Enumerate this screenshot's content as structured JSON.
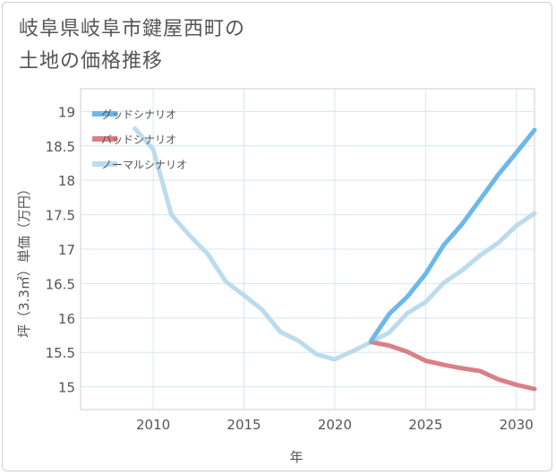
{
  "title": {
    "line1": "岐阜県岐阜市鍵屋西町の",
    "line2": "土地の価格推移"
  },
  "chart_data": {
    "type": "line",
    "xlabel": "年",
    "ylabel": "坪（3.3㎡）単価（万円）",
    "xlim": [
      2006,
      2031
    ],
    "ylim": [
      14.67,
      19.33
    ],
    "x_ticks": [
      2010,
      2015,
      2020,
      2025,
      2030
    ],
    "y_ticks": [
      15,
      15.5,
      16,
      16.5,
      17,
      17.5,
      18,
      18.5,
      19
    ],
    "grid": true,
    "legend_position": "top-left",
    "series": [
      {
        "name": "グッドシナリオ",
        "color": "#6cb8ea",
        "x": [
          2022,
          2023,
          2024,
          2025,
          2026,
          2027,
          2028,
          2029,
          2030,
          2031
        ],
        "y": [
          15.67,
          16.06,
          16.31,
          16.64,
          17.06,
          17.36,
          17.72,
          18.08,
          18.4,
          18.73
        ]
      },
      {
        "name": "バッドシナリオ",
        "color": "#da7f88",
        "x": [
          2022,
          2023,
          2024,
          2025,
          2026,
          2027,
          2028,
          2029,
          2030,
          2031
        ],
        "y": [
          15.65,
          15.6,
          15.51,
          15.38,
          15.32,
          15.27,
          15.23,
          15.11,
          15.03,
          14.97
        ]
      },
      {
        "name": "ノーマルシナリオ",
        "color": "#bcdcec",
        "x": [
          2009,
          2010,
          2011,
          2012,
          2013,
          2014,
          2015,
          2016,
          2017,
          2018,
          2019,
          2020,
          2021,
          2022,
          2023,
          2024,
          2025,
          2026,
          2027,
          2028,
          2029,
          2030,
          2031
        ],
        "y": [
          18.75,
          18.45,
          17.5,
          17.2,
          16.93,
          16.53,
          16.33,
          16.12,
          15.8,
          15.67,
          15.47,
          15.4,
          15.52,
          15.65,
          15.79,
          16.07,
          16.23,
          16.51,
          16.69,
          16.91,
          17.09,
          17.34,
          17.52
        ]
      }
    ]
  }
}
